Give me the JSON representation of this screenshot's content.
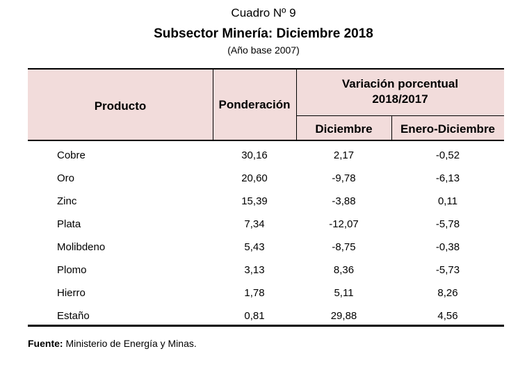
{
  "header": {
    "caption": "Cuadro Nº 9",
    "title": "Subsector Minería: Diciembre 2018",
    "subtitle": "(Año base 2007)"
  },
  "table": {
    "col_producto": "Producto",
    "col_ponderacion": "Ponderación",
    "col_variacion_line1": "Variación porcentual",
    "col_variacion_line2": "2018/2017",
    "col_diciembre": "Diciembre",
    "col_enero_diciembre": "Enero-Diciembre",
    "rows": [
      {
        "producto": "Cobre",
        "ponderacion": "30,16",
        "diciembre": "2,17",
        "enero_diciembre": "-0,52"
      },
      {
        "producto": "Oro",
        "ponderacion": "20,60",
        "diciembre": "-9,78",
        "enero_diciembre": "-6,13"
      },
      {
        "producto": "Zinc",
        "ponderacion": "15,39",
        "diciembre": "-3,88",
        "enero_diciembre": "0,11"
      },
      {
        "producto": "Plata",
        "ponderacion": "7,34",
        "diciembre": "-12,07",
        "enero_diciembre": "-5,78"
      },
      {
        "producto": "Molibdeno",
        "ponderacion": "5,43",
        "diciembre": "-8,75",
        "enero_diciembre": "-0,38"
      },
      {
        "producto": "Plomo",
        "ponderacion": "3,13",
        "diciembre": "8,36",
        "enero_diciembre": "-5,73"
      },
      {
        "producto": "Hierro",
        "ponderacion": "1,78",
        "diciembre": "5,11",
        "enero_diciembre": "8,26"
      },
      {
        "producto": "Estaño",
        "ponderacion": "0,81",
        "diciembre": "29,88",
        "enero_diciembre": "4,56"
      }
    ]
  },
  "footer": {
    "source_label": "Fuente:",
    "source_text": " Ministerio de Energía y Minas."
  },
  "colors": {
    "header_bg": "#f2dcdb"
  }
}
